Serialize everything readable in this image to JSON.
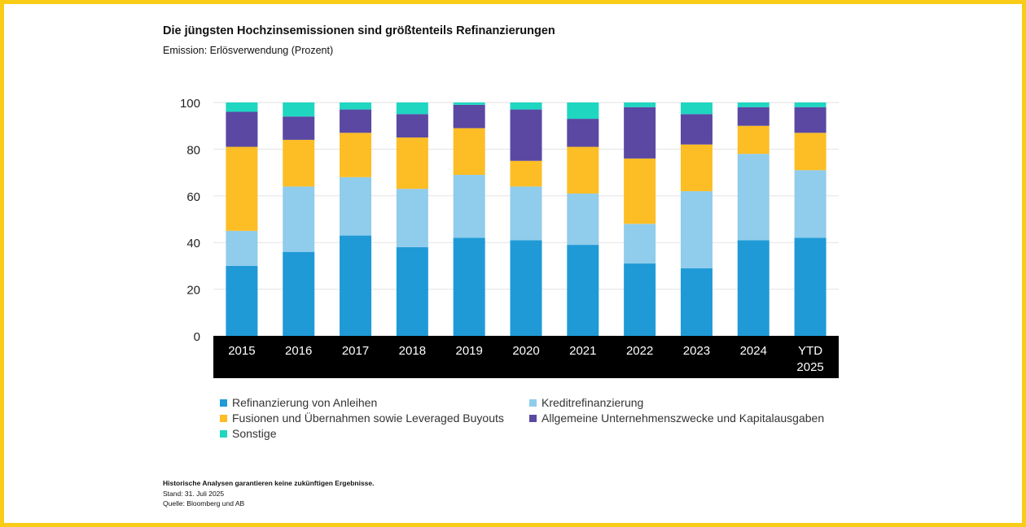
{
  "chart_data": {
    "type": "bar",
    "stacked": true,
    "title": "Die jüngsten Hochzinsemissionen sind größtenteils Refinanzierungen",
    "subtitle": "Emission: Erlösverwendung (Prozent)",
    "categories": [
      "2015",
      "2016",
      "2017",
      "2018",
      "2019",
      "2020",
      "2021",
      "2022",
      "2023",
      "2024",
      "YTD 2025"
    ],
    "ylim": [
      0,
      100
    ],
    "yticks": [
      0,
      20,
      40,
      60,
      80,
      100
    ],
    "grid": true,
    "legend_position": "bottom",
    "series": [
      {
        "name": "Refinanzierung von Anleihen",
        "color": "#1f9ad6",
        "values": [
          30,
          36,
          43,
          38,
          42,
          41,
          39,
          31,
          29,
          41,
          42
        ]
      },
      {
        "name": "Kreditrefinanzierung",
        "color": "#90cceb",
        "values": [
          15,
          28,
          25,
          25,
          27,
          23,
          22,
          17,
          33,
          37,
          29
        ]
      },
      {
        "name": "Fusionen und Übernahmen sowie Leveraged Buyouts",
        "color": "#fdbd25",
        "values": [
          36,
          20,
          19,
          22,
          20,
          11,
          20,
          28,
          20,
          12,
          16
        ]
      },
      {
        "name": "Allgemeine Unternehmenszwecke und Kapitalausgaben",
        "color": "#5a48a3",
        "values": [
          15,
          10,
          10,
          10,
          10,
          22,
          12,
          22,
          13,
          8,
          11
        ]
      },
      {
        "name": "Sonstige",
        "color": "#1fd6c1",
        "values": [
          4,
          6,
          3,
          5,
          1,
          3,
          7,
          2,
          5,
          2,
          2
        ]
      }
    ]
  },
  "footer": {
    "disclaimer": "Historische Analysen garantieren keine zukünftigen Ergebnisse.",
    "date": "Stand: 31. Juli 2025",
    "source": "Quelle: Bloomberg und AB"
  },
  "colors": {
    "frame": "#f9cd17",
    "axis_band": "#000000"
  }
}
